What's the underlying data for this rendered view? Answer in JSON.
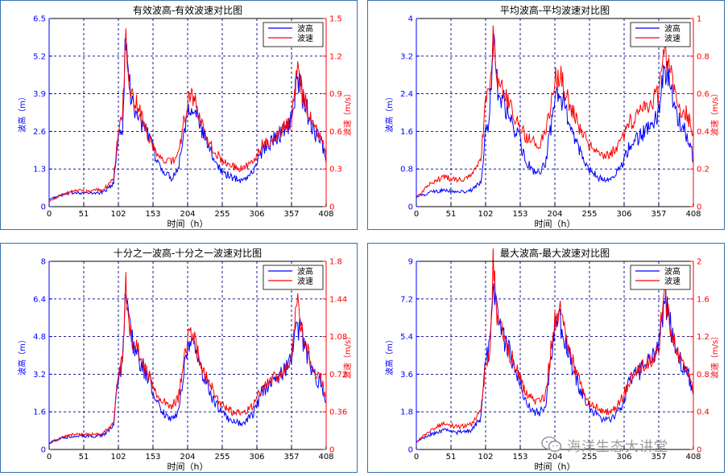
{
  "colors": {
    "wave_height": "#0000ff",
    "wave_speed": "#ff0000",
    "grid": "#000080",
    "frame": "#3a6fb0"
  },
  "x_axis_label": "时间（h）",
  "y_left_label": "波高（m）",
  "y_right_label": "波速（m/s）",
  "legend_labels": [
    "波高",
    "波速"
  ],
  "watermark": "海洋生态大讲堂",
  "chart_data": [
    {
      "type": "line",
      "title": "有效波高-有效波速对比图",
      "xlabel": "时间（h）",
      "ylabel": "波高（m）",
      "y2label": "波速（m/s）",
      "xlim": [
        0,
        408
      ],
      "ylim": [
        0,
        6.5
      ],
      "y2lim": [
        0,
        1.5
      ],
      "xticks": [
        "0",
        "51",
        "102",
        "153",
        "204",
        "255",
        "306",
        "357",
        "408"
      ],
      "yticks": [
        "0",
        "1.3",
        "2.6",
        "3.9",
        "5.2",
        "6.5"
      ],
      "y2ticks": [
        "0",
        "0.3",
        "0.6",
        "0.9",
        "1.2",
        "1.5"
      ],
      "legend": "top-right",
      "grid": true,
      "series": [
        {
          "name": "波高",
          "axis": "left",
          "x": [
            0,
            20,
            40,
            60,
            80,
            95,
            102,
            108,
            113,
            120,
            130,
            140,
            150,
            160,
            170,
            180,
            190,
            204,
            212,
            225,
            240,
            255,
            270,
            285,
            300,
            315,
            330,
            345,
            357,
            365,
            373,
            380,
            390,
            400,
            408
          ],
          "values": [
            0.25,
            0.4,
            0.5,
            0.45,
            0.5,
            0.8,
            2.5,
            2.8,
            6.0,
            3.8,
            3.2,
            2.7,
            2.2,
            1.5,
            1.2,
            1.0,
            1.3,
            3.4,
            3.6,
            2.6,
            1.8,
            1.2,
            1.0,
            0.9,
            1.2,
            2.0,
            2.3,
            2.6,
            3.0,
            4.5,
            3.8,
            3.3,
            2.6,
            2.3,
            1.5
          ]
        },
        {
          "name": "波速",
          "axis": "right",
          "x": [
            0,
            20,
            40,
            60,
            80,
            95,
            102,
            108,
            113,
            120,
            130,
            140,
            150,
            160,
            170,
            180,
            190,
            204,
            212,
            225,
            240,
            255,
            270,
            285,
            300,
            315,
            330,
            345,
            357,
            365,
            373,
            380,
            390,
            400,
            408
          ],
          "values": [
            0.04,
            0.1,
            0.13,
            0.12,
            0.14,
            0.22,
            0.6,
            0.72,
            1.3,
            0.92,
            0.8,
            0.65,
            0.52,
            0.42,
            0.38,
            0.35,
            0.4,
            0.85,
            0.88,
            0.65,
            0.48,
            0.36,
            0.32,
            0.3,
            0.35,
            0.5,
            0.55,
            0.62,
            0.68,
            1.1,
            0.9,
            0.78,
            0.62,
            0.55,
            0.4
          ]
        }
      ]
    },
    {
      "type": "line",
      "title": "平均波高-平均波速对比图",
      "xlabel": "时间（h）",
      "ylabel": "波高（m）",
      "y2label": "波速（m/s）",
      "xlim": [
        0,
        408
      ],
      "ylim": [
        0,
        4
      ],
      "y2lim": [
        0,
        1
      ],
      "xticks": [
        "0",
        "51",
        "102",
        "153",
        "204",
        "255",
        "306",
        "357",
        "408"
      ],
      "yticks": [
        "0",
        "0.8",
        "1.6",
        "2.4",
        "3.2",
        "4"
      ],
      "y2ticks": [
        "0",
        "0.2",
        "0.4",
        "0.6",
        "0.8",
        "1"
      ],
      "legend": "top-right",
      "grid": true,
      "series": [
        {
          "name": "波高",
          "axis": "left",
          "x": [
            0,
            20,
            40,
            60,
            80,
            95,
            102,
            108,
            113,
            120,
            130,
            140,
            150,
            160,
            170,
            180,
            190,
            204,
            212,
            225,
            240,
            255,
            270,
            285,
            300,
            315,
            330,
            345,
            357,
            365,
            373,
            380,
            390,
            400,
            408
          ],
          "values": [
            0.2,
            0.3,
            0.35,
            0.3,
            0.35,
            0.5,
            1.6,
            1.8,
            3.6,
            2.5,
            2.2,
            1.8,
            1.5,
            1.0,
            0.8,
            0.7,
            0.9,
            2.3,
            2.4,
            1.8,
            1.2,
            0.8,
            0.6,
            0.6,
            0.8,
            1.3,
            1.5,
            1.7,
            2.0,
            3.0,
            2.6,
            2.2,
            1.7,
            1.5,
            1.0
          ]
        },
        {
          "name": "波速",
          "axis": "right",
          "x": [
            0,
            20,
            40,
            60,
            80,
            95,
            102,
            108,
            113,
            120,
            130,
            140,
            150,
            160,
            170,
            180,
            190,
            204,
            212,
            225,
            240,
            255,
            270,
            285,
            300,
            315,
            330,
            345,
            357,
            365,
            373,
            380,
            390,
            400,
            408
          ],
          "values": [
            0.05,
            0.12,
            0.16,
            0.14,
            0.16,
            0.25,
            0.55,
            0.62,
            0.88,
            0.68,
            0.6,
            0.52,
            0.44,
            0.38,
            0.35,
            0.33,
            0.38,
            0.68,
            0.7,
            0.55,
            0.42,
            0.32,
            0.28,
            0.28,
            0.33,
            0.45,
            0.5,
            0.55,
            0.6,
            0.85,
            0.72,
            0.62,
            0.52,
            0.48,
            0.4
          ]
        }
      ]
    },
    {
      "type": "line",
      "title": "十分之一波高-十分之一波速对比图",
      "xlabel": "时间（h）",
      "ylabel": "波高（m）",
      "y2label": "波速（m/s）",
      "xlim": [
        0,
        408
      ],
      "ylim": [
        0,
        8
      ],
      "y2lim": [
        0,
        1.8
      ],
      "xticks": [
        "0",
        "51",
        "102",
        "153",
        "204",
        "255",
        "306",
        "357",
        "408"
      ],
      "yticks": [
        "0",
        "1.6",
        "3.2",
        "4.8",
        "6.4",
        "8"
      ],
      "y2ticks": [
        "0",
        "0.36",
        "0.72",
        "1.08",
        "1.44",
        "1.8"
      ],
      "legend": "top-right",
      "grid": true,
      "series": [
        {
          "name": "波高",
          "axis": "left",
          "x": [
            0,
            20,
            40,
            60,
            80,
            95,
            102,
            108,
            113,
            120,
            130,
            140,
            150,
            160,
            170,
            180,
            190,
            204,
            212,
            225,
            240,
            255,
            270,
            285,
            300,
            315,
            330,
            345,
            357,
            365,
            373,
            380,
            390,
            400,
            408
          ],
          "values": [
            0.3,
            0.5,
            0.6,
            0.55,
            0.6,
            1.0,
            3.2,
            3.5,
            7.2,
            4.8,
            4.0,
            3.4,
            2.8,
            1.9,
            1.5,
            1.3,
            1.6,
            4.3,
            4.5,
            3.3,
            2.2,
            1.5,
            1.2,
            1.1,
            1.5,
            2.5,
            2.9,
            3.3,
            3.8,
            5.5,
            4.6,
            4.0,
            3.2,
            2.8,
            2.0
          ]
        },
        {
          "name": "波速",
          "axis": "right",
          "x": [
            0,
            20,
            40,
            60,
            80,
            95,
            102,
            108,
            113,
            120,
            130,
            140,
            150,
            160,
            170,
            180,
            190,
            204,
            212,
            225,
            240,
            255,
            270,
            285,
            300,
            315,
            330,
            345,
            357,
            365,
            373,
            380,
            390,
            400,
            408
          ],
          "values": [
            0.05,
            0.12,
            0.15,
            0.14,
            0.16,
            0.25,
            0.75,
            0.85,
            1.55,
            1.1,
            0.95,
            0.8,
            0.65,
            0.5,
            0.45,
            0.42,
            0.48,
            1.05,
            1.08,
            0.8,
            0.58,
            0.42,
            0.36,
            0.34,
            0.42,
            0.6,
            0.68,
            0.75,
            0.82,
            1.45,
            1.1,
            0.95,
            0.75,
            0.68,
            0.5
          ]
        }
      ]
    },
    {
      "type": "line",
      "title": "最大波高-最大波速对比图",
      "xlabel": "时间（h）",
      "ylabel": "波高（m）",
      "y2label": "波速（m/s）",
      "xlim": [
        0,
        408
      ],
      "ylim": [
        0,
        9
      ],
      "y2lim": [
        0,
        2
      ],
      "xticks": [
        "0",
        "51",
        "102",
        "153",
        "204",
        "255",
        "306",
        "357",
        "408"
      ],
      "yticks": [
        "0",
        "1.8",
        "3.6",
        "5.4",
        "7.2",
        "9"
      ],
      "y2ticks": [
        "0",
        "0.4",
        "0.8",
        "1.2",
        "1.6",
        "2"
      ],
      "legend": "top-right",
      "grid": true,
      "series": [
        {
          "name": "波高",
          "axis": "left",
          "x": [
            0,
            20,
            40,
            60,
            80,
            95,
            102,
            108,
            113,
            120,
            130,
            140,
            150,
            160,
            170,
            180,
            190,
            204,
            212,
            225,
            240,
            255,
            270,
            285,
            300,
            315,
            330,
            345,
            357,
            365,
            373,
            380,
            390,
            400,
            408
          ],
          "values": [
            0.4,
            0.7,
            0.9,
            0.8,
            0.9,
            1.5,
            4.3,
            4.8,
            8.5,
            6.2,
            5.2,
            4.4,
            3.6,
            2.5,
            1.9,
            1.7,
            2.1,
            5.8,
            6.0,
            4.5,
            3.0,
            2.0,
            1.5,
            1.4,
            1.9,
            3.3,
            3.8,
            4.3,
            5.0,
            7.2,
            6.1,
            5.2,
            4.2,
            3.7,
            2.6
          ]
        },
        {
          "name": "波速",
          "axis": "right",
          "x": [
            0,
            20,
            40,
            60,
            80,
            95,
            102,
            108,
            113,
            120,
            130,
            140,
            150,
            160,
            170,
            180,
            190,
            204,
            212,
            225,
            240,
            255,
            270,
            285,
            300,
            315,
            330,
            345,
            357,
            365,
            373,
            380,
            390,
            400,
            408
          ],
          "values": [
            0.08,
            0.2,
            0.28,
            0.24,
            0.26,
            0.4,
            0.9,
            1.05,
            1.95,
            1.35,
            1.15,
            0.98,
            0.8,
            0.62,
            0.55,
            0.5,
            0.58,
            1.4,
            1.45,
            1.05,
            0.72,
            0.5,
            0.42,
            0.4,
            0.5,
            0.75,
            0.85,
            0.95,
            1.05,
            1.75,
            1.35,
            1.15,
            0.92,
            0.82,
            0.6
          ]
        }
      ]
    }
  ]
}
